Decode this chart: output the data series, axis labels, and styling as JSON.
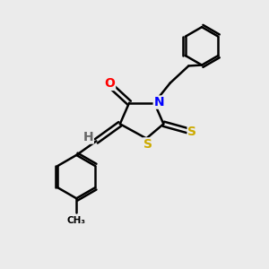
{
  "background_color": "#ebebeb",
  "figsize": [
    3.0,
    3.0
  ],
  "dpi": 100,
  "atom_colors": {
    "O": "#ff0000",
    "N": "#0000ff",
    "S": "#ccaa00",
    "C": "#000000",
    "H": "#666666"
  },
  "bond_color": "#000000",
  "bond_width": 1.8,
  "font_size_atoms": 10
}
